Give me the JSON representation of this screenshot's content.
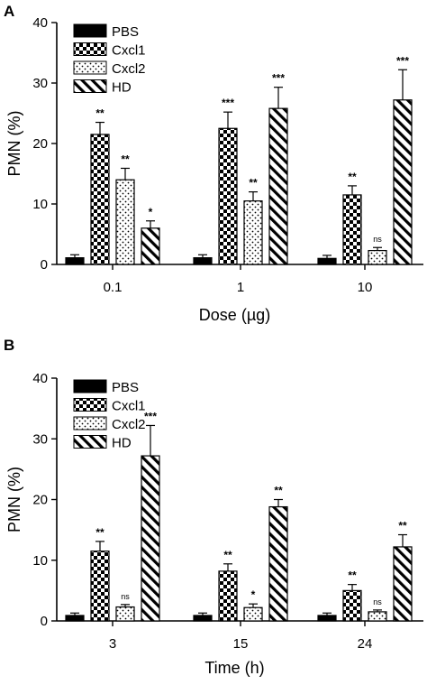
{
  "chart_data": [
    {
      "type": "bar",
      "panel": "A",
      "xlabel": "Dose (µg)",
      "ylabel": "PMN (%)",
      "ylim": [
        0,
        40
      ],
      "yticks": [
        0,
        10,
        20,
        30,
        40
      ],
      "categories": [
        "0.1",
        "1",
        "10"
      ],
      "legend": "top-left",
      "grid": false,
      "series": [
        {
          "name": "PBS",
          "pattern": "solid",
          "values": [
            1.1,
            1.1,
            1.0
          ],
          "errors": [
            0.5,
            0.5,
            0.5
          ],
          "sig": [
            "",
            "",
            ""
          ]
        },
        {
          "name": "Cxcl1",
          "pattern": "checker",
          "values": [
            21.5,
            22.5,
            11.5
          ],
          "errors": [
            2.0,
            2.7,
            1.5
          ],
          "sig": [
            "**",
            "***",
            "**"
          ]
        },
        {
          "name": "Cxcl2",
          "pattern": "dots",
          "values": [
            14.0,
            10.5,
            2.3
          ],
          "errors": [
            1.9,
            1.5,
            0.5
          ],
          "sig": [
            "**",
            "**",
            "ns"
          ]
        },
        {
          "name": "HD",
          "pattern": "hatch",
          "values": [
            6.0,
            25.8,
            27.2
          ],
          "errors": [
            1.2,
            3.5,
            5.0
          ],
          "sig": [
            "*",
            "***",
            "***"
          ]
        }
      ]
    },
    {
      "type": "bar",
      "panel": "B",
      "xlabel": "Time (h)",
      "ylabel": "PMN (%)",
      "ylim": [
        0,
        40
      ],
      "yticks": [
        0,
        10,
        20,
        30,
        40
      ],
      "categories": [
        "3",
        "15",
        "24"
      ],
      "legend": "top-left",
      "grid": false,
      "series": [
        {
          "name": "PBS",
          "pattern": "solid",
          "values": [
            0.9,
            0.9,
            0.9
          ],
          "errors": [
            0.4,
            0.4,
            0.4
          ],
          "sig": [
            "",
            "",
            ""
          ]
        },
        {
          "name": "Cxcl1",
          "pattern": "checker",
          "values": [
            11.5,
            8.2,
            5.0
          ],
          "errors": [
            1.6,
            1.2,
            1.0
          ],
          "sig": [
            "**",
            "**",
            "**"
          ]
        },
        {
          "name": "Cxcl2",
          "pattern": "dots",
          "values": [
            2.3,
            2.2,
            1.5
          ],
          "errors": [
            0.4,
            0.6,
            0.3
          ],
          "sig": [
            "ns",
            "*",
            "ns"
          ]
        },
        {
          "name": "HD",
          "pattern": "hatch",
          "values": [
            27.2,
            18.8,
            12.2
          ],
          "errors": [
            5.0,
            1.2,
            2.0
          ],
          "sig": [
            "***",
            "**",
            "**"
          ]
        }
      ]
    }
  ]
}
